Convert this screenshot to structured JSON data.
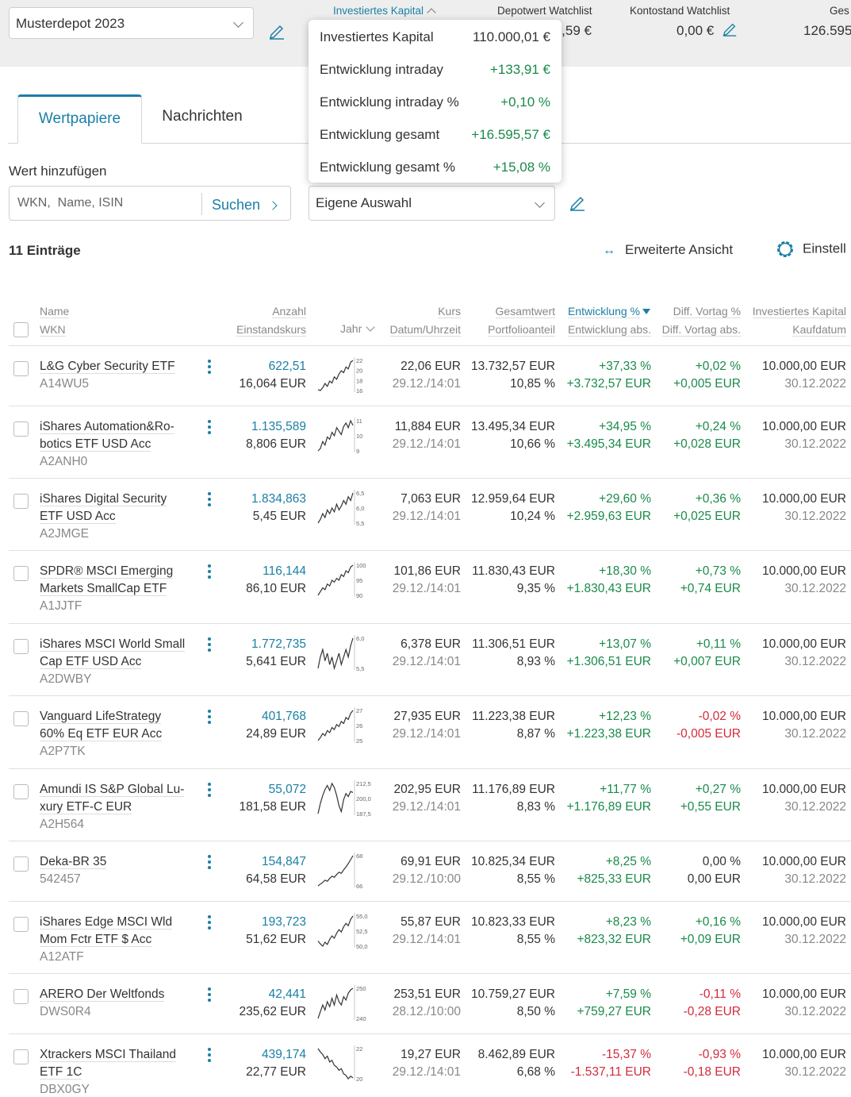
{
  "header": {
    "depot_name": "Musterdepot 2023",
    "kpis": [
      {
        "label": "Investiertes Kapital",
        "value": ""
      },
      {
        "label": "Depotwert Watchlist",
        "value": ",5,59 €"
      },
      {
        "label": "Kontostand Watchlist",
        "value": "0,00 €"
      },
      {
        "label": "Ges",
        "value": "126.595"
      }
    ]
  },
  "popup": {
    "rows": [
      {
        "label": "Investiertes Kapital",
        "value": "110.000,01 €"
      },
      {
        "label": "Entwicklung intraday",
        "value": "+133,91 €"
      },
      {
        "label": "Entwicklung intraday %",
        "value": "+0,10 %"
      },
      {
        "label": "Entwicklung gesamt",
        "value": "+16.595,57 €"
      },
      {
        "label": "Entwicklung gesamt %",
        "value": "+15,08 %"
      }
    ]
  },
  "tabs": {
    "wertpapiere": "Wertpapiere",
    "nachrichten": "Nachrichten"
  },
  "add": {
    "label": "Wert hinzufügen",
    "placeholder": "WKN,  Name, ISIN",
    "search_button": "Suchen",
    "selection": "Eigene Auswahl"
  },
  "list": {
    "count": "11 Einträge",
    "extended_view": "Erweiterte Ansicht",
    "settings": "Einstell"
  },
  "columns": {
    "name": "Name",
    "wkn": "WKN",
    "anzahl": "Anzahl",
    "einstandskurs": "Einstandskurs",
    "jahr": "Jahr",
    "kurs": "Kurs",
    "datum": "Datum/Uhrzeit",
    "gesamtwert": "Gesamtwert",
    "anteil": "Portfolioanteil",
    "entw_pct": "Entwicklung %",
    "entw_abs": "Entwicklung abs.",
    "diff_pct": "Diff. Vortag %",
    "diff_abs": "Diff. Vortag abs.",
    "invest": "Investiertes Kapital",
    "kaufdatum": "Kaufdatum"
  },
  "rows": [
    {
      "name1": "L&G Cyber Security ETF",
      "name2": "",
      "wkn": "A14WU5",
      "anzahl": "622,51",
      "einstand": "16,064 EUR",
      "kurs": "22,06 EUR",
      "datum": "29.12./14:01",
      "gesamt": "13.732,57 EUR",
      "anteil": "10,85 %",
      "entw_pct": "+37,33 %",
      "entw_abs": "+3.732,57 EUR",
      "diff_pct": "+0,02 %",
      "diff_abs": "+0,005 EUR",
      "invest": "10.000,00 EUR",
      "kauf": "30.12.2022",
      "dpos": true,
      "ticks": [
        "22",
        "20",
        "18",
        "16"
      ],
      "spark": [
        16.2,
        16.0,
        16.6,
        17.5,
        16.9,
        18.0,
        17.6,
        18.9,
        18.4,
        19.5,
        20.2,
        19.8,
        21.0,
        20.6,
        22.0,
        22.4
      ]
    },
    {
      "name1": "iShares Automation&Ro-",
      "name2": "botics ETF USD Acc",
      "wkn": "A2ANH0",
      "anzahl": "1.135,589",
      "einstand": "8,806 EUR",
      "kurs": "11,884 EUR",
      "datum": "29.12./14:01",
      "gesamt": "13.495,34 EUR",
      "anteil": "10,66 %",
      "entw_pct": "+34,95 %",
      "entw_abs": "+3.495,34 EUR",
      "diff_pct": "+0,24 %",
      "diff_abs": "+0,028 EUR",
      "invest": "10.000,00 EUR",
      "kauf": "30.12.2022",
      "dpos": true,
      "ticks": [
        "11",
        "10",
        "9"
      ],
      "spark": [
        8.8,
        9.0,
        9.6,
        9.3,
        10.0,
        9.8,
        10.4,
        10.1,
        10.8,
        10.5,
        10.2,
        10.9,
        11.2,
        10.8,
        11.4,
        11.0
      ]
    },
    {
      "name1": "iShares Digital Security",
      "name2": "ETF USD Acc",
      "wkn": "A2JMGE",
      "anzahl": "1.834,863",
      "einstand": "5,45 EUR",
      "kurs": "7,063 EUR",
      "datum": "29.12./14:01",
      "gesamt": "12.959,64 EUR",
      "anteil": "10,24 %",
      "entw_pct": "+29,60 %",
      "entw_abs": "+2.959,63 EUR",
      "diff_pct": "+0,36 %",
      "diff_abs": "+0,025 EUR",
      "invest": "10.000,00 EUR",
      "kauf": "30.12.2022",
      "dpos": true,
      "ticks": [
        "6,5",
        "6,0",
        "5,5"
      ],
      "spark": [
        5.4,
        5.6,
        5.9,
        5.7,
        6.1,
        5.9,
        6.2,
        6.0,
        6.4,
        6.1,
        6.3,
        6.6,
        6.4,
        6.8,
        6.6,
        7.0
      ]
    },
    {
      "name1": "SPDR® MSCI Emerging",
      "name2": "Markets SmallCap ETF",
      "wkn": "A1JJTF",
      "anzahl": "116,144",
      "einstand": "86,10 EUR",
      "kurs": "101,86 EUR",
      "datum": "29.12./14:01",
      "gesamt": "11.830,43 EUR",
      "anteil": "9,35 %",
      "entw_pct": "+18,30 %",
      "entw_abs": "+1.830,43 EUR",
      "diff_pct": "+0,73 %",
      "diff_abs": "+0,74 EUR",
      "invest": "10.000,00 EUR",
      "kauf": "30.12.2022",
      "dpos": true,
      "ticks": [
        "100",
        "95",
        "90"
      ],
      "spark": [
        86,
        88,
        90,
        89,
        92,
        91,
        94,
        93,
        95,
        94,
        97,
        96,
        99,
        98,
        101,
        102
      ]
    },
    {
      "name1": "iShares MSCI World Small",
      "name2": "Cap ETF USD Acc",
      "wkn": "A2DWBY",
      "anzahl": "1.772,735",
      "einstand": "5,641 EUR",
      "kurs": "6,378 EUR",
      "datum": "29.12./14:01",
      "gesamt": "11.306,51 EUR",
      "anteil": "8,93 %",
      "entw_pct": "+13,07 %",
      "entw_abs": "+1.306,51 EUR",
      "diff_pct": "+0,11 %",
      "diff_abs": "+0,007 EUR",
      "invest": "10.000,00 EUR",
      "kauf": "30.12.2022",
      "dpos": true,
      "ticks": [
        "6,0",
        "5,5"
      ],
      "spark": [
        5.6,
        5.9,
        6.1,
        5.8,
        6.0,
        5.7,
        5.9,
        5.6,
        5.8,
        6.0,
        5.7,
        5.9,
        6.1,
        5.9,
        6.2,
        6.4
      ]
    },
    {
      "name1": "Vanguard LifeStrategy",
      "name2": "60% Eq ETF EUR Acc",
      "wkn": "A2P7TK",
      "anzahl": "401,768",
      "einstand": "24,89 EUR",
      "kurs": "27,935 EUR",
      "datum": "29.12./14:01",
      "gesamt": "11.223,38 EUR",
      "anteil": "8,87 %",
      "entw_pct": "+12,23 %",
      "entw_abs": "+1.223,38 EUR",
      "diff_pct": "-0,02 %",
      "diff_abs": "-0,005 EUR",
      "invest": "10.000,00 EUR",
      "kauf": "30.12.2022",
      "dpos": false,
      "ticks": [
        "27",
        "26",
        "25"
      ],
      "spark": [
        24.9,
        25.2,
        25.6,
        25.4,
        25.9,
        25.7,
        26.2,
        26.0,
        26.5,
        26.3,
        26.8,
        26.6,
        27.2,
        27.0,
        27.6,
        27.9
      ]
    },
    {
      "name1": "Amundi IS S&P Global Lu-",
      "name2": "xury ETF-C EUR",
      "wkn": "A2H564",
      "anzahl": "55,072",
      "einstand": "181,58 EUR",
      "kurs": "202,95 EUR",
      "datum": "29.12./14:01",
      "gesamt": "11.176,89 EUR",
      "anteil": "8,83 %",
      "entw_pct": "+11,77 %",
      "entw_abs": "+1.176,89 EUR",
      "diff_pct": "+0,27 %",
      "diff_abs": "+0,55 EUR",
      "invest": "10.000,00 EUR",
      "kauf": "30.12.2022",
      "dpos": true,
      "ticks": [
        "212,5",
        "200,0",
        "187,5"
      ],
      "spark": [
        182,
        192,
        200,
        206,
        210,
        205,
        212,
        208,
        200,
        190,
        184,
        196,
        202,
        199,
        204,
        203
      ]
    },
    {
      "name1": "Deka-BR 35",
      "name2": "",
      "wkn": "542457",
      "anzahl": "154,847",
      "einstand": "64,58 EUR",
      "kurs": "69,91 EUR",
      "datum": "29.12./10:00",
      "gesamt": "10.825,34 EUR",
      "anteil": "8,55 %",
      "entw_pct": "+8,25 %",
      "entw_abs": "+825,33 EUR",
      "diff_pct": "0,00 %",
      "diff_abs": "0,00 EUR",
      "invest": "10.000,00 EUR",
      "kauf": "30.12.2022",
      "dpos": null,
      "ticks": [
        "68",
        "66"
      ],
      "spark": [
        64.6,
        64.9,
        65.2,
        65.6,
        65.4,
        65.9,
        66.3,
        66.1,
        66.6,
        67.0,
        66.8,
        67.4,
        67.9,
        68.5,
        69.2,
        69.9
      ]
    },
    {
      "name1": "iShares Edge MSCI Wld",
      "name2": "Mom Fctr ETF $ Acc",
      "wkn": "A12ATF",
      "anzahl": "193,723",
      "einstand": "51,62 EUR",
      "kurs": "55,87 EUR",
      "datum": "29.12./14:01",
      "gesamt": "10.823,33 EUR",
      "anteil": "8,55 %",
      "entw_pct": "+8,23 %",
      "entw_abs": "+823,32 EUR",
      "diff_pct": "+0,16 %",
      "diff_abs": "+0,09 EUR",
      "invest": "10.000,00 EUR",
      "kauf": "30.12.2022",
      "dpos": true,
      "ticks": [
        "55,0",
        "52,5",
        "50,0"
      ],
      "spark": [
        51.5,
        51.0,
        50.6,
        51.3,
        50.9,
        51.8,
        52.4,
        52.0,
        52.9,
        53.5,
        53.1,
        54.0,
        54.6,
        54.2,
        55.3,
        55.9
      ]
    },
    {
      "name1": "ARERO Der Weltfonds",
      "name2": "",
      "wkn": "DWS0R4",
      "anzahl": "42,441",
      "einstand": "235,62 EUR",
      "kurs": "253,51 EUR",
      "datum": "28.12./10:00",
      "gesamt": "10.759,27 EUR",
      "anteil": "8,50 %",
      "entw_pct": "+7,59 %",
      "entw_abs": "+759,27 EUR",
      "diff_pct": "-0,11 %",
      "diff_abs": "-0,28 EUR",
      "invest": "10.000,00 EUR",
      "kauf": "30.12.2022",
      "dpos": false,
      "ticks": [
        "250",
        "240"
      ],
      "spark": [
        236,
        240,
        244,
        241,
        246,
        243,
        248,
        244,
        250,
        246,
        244,
        249,
        247,
        251,
        253,
        254
      ]
    },
    {
      "name1": "Xtrackers MSCI Thailand",
      "name2": "ETF 1C",
      "wkn": "DBX0GY",
      "anzahl": "439,174",
      "einstand": "22,77 EUR",
      "kurs": "19,27 EUR",
      "datum": "29.12./14:01",
      "gesamt": "8.462,89 EUR",
      "anteil": "6,68 %",
      "entw_pct": "-15,37 %",
      "entw_abs": "-1.537,11 EUR",
      "diff_pct": "-0,93 %",
      "diff_abs": "-0,18 EUR",
      "invest": "10.000,00 EUR",
      "kauf": "30.12.2022",
      "dpos": false,
      "ticks": [
        "22",
        "20"
      ],
      "spark": [
        22.8,
        22.4,
        22.1,
        21.6,
        21.9,
        21.2,
        21.4,
        20.8,
        20.6,
        20.2,
        20.4,
        19.8,
        19.6,
        19.2,
        19.5,
        19.3
      ]
    }
  ]
}
